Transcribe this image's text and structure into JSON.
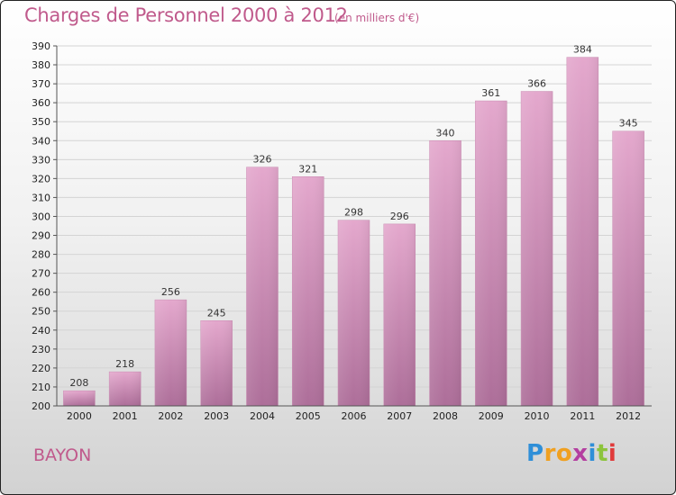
{
  "chart_data": {
    "type": "bar",
    "title": "Charges de Personnel 2000 à 2012",
    "subtitle": "(en milliers d'€)",
    "categories": [
      "2000",
      "2001",
      "2002",
      "2003",
      "2004",
      "2005",
      "2006",
      "2007",
      "2008",
      "2009",
      "2010",
      "2011",
      "2012"
    ],
    "values": [
      208,
      218,
      256,
      245,
      326,
      321,
      298,
      296,
      340,
      361,
      366,
      384,
      345
    ],
    "ylim": [
      200,
      390
    ],
    "ytick_step": 10,
    "grid": true,
    "bar_color": "#d98fbd",
    "bar_color_dark": "#ad6e99"
  },
  "place_label": "BAYON",
  "logo": {
    "letters": [
      "P",
      "r",
      "o",
      "x",
      "i",
      "t",
      "i"
    ],
    "colors": [
      "#2f8fd8",
      "#f0a020",
      "#f0a020",
      "#b43fa0",
      "#2f8fd8",
      "#8cc43c",
      "#e03a3a"
    ]
  }
}
